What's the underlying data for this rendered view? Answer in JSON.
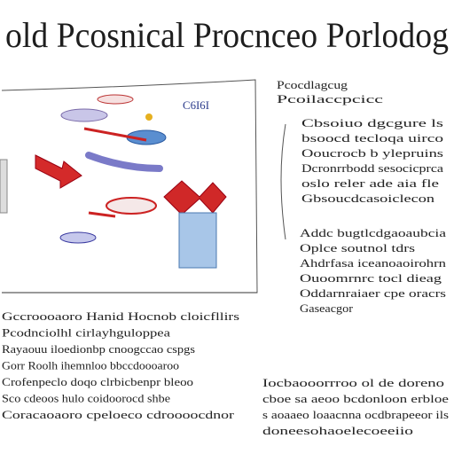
{
  "header": {
    "title": "old Pcosnical Procnceo Porlodog"
  },
  "diagram": {
    "label": "C6I6I"
  },
  "right_column": {
    "heading": [
      "Pcocdlagcug",
      "Pcoilaccpcicc"
    ],
    "block_1": [
      "Cbsoiuo dgcgure ls",
      "bsoocd tecloqa uirco",
      "Ooucrocb b ylepruins",
      "Dcronrrbodd sesocicprca",
      "oslo reler ade aia fle",
      "Gbsoucdcasoiclecon"
    ],
    "block_2": [
      "Addc bugtlcdgaoaubcia",
      "Oplce soutnol tdrs",
      "Ahdrfasa iceanoaoirohrn",
      "Ouoomrnrc tocl dieag",
      "Oddarnraiaer cpe oracrs",
      "Gaseacgor"
    ]
  },
  "bottom_left": [
    "Gccroooaoro Hanid Hocnob cloicfllirs",
    "Pcodnciolhl cirlayhguloppea",
    "Rayaouu iloedionbp cnoogccao cspgs",
    "Gorr Roolh ihemnloo bbccdoooaroo",
    "Crofenpeclo doqo clrbicbenpr bleoo",
    "Sco cdeoos hulo coidoorocd shbe",
    "Coracaoaoro cpeloeco cdroooocdnor"
  ],
  "bottom_right": [
    "Iocbaooorrroo ol de doreno",
    "cboe sa aeoo bcdonloon erbloe",
    "s aoaaeo loaacnna ocdbrapeeor ils",
    "doneesohaoelecoeeiio"
  ]
}
